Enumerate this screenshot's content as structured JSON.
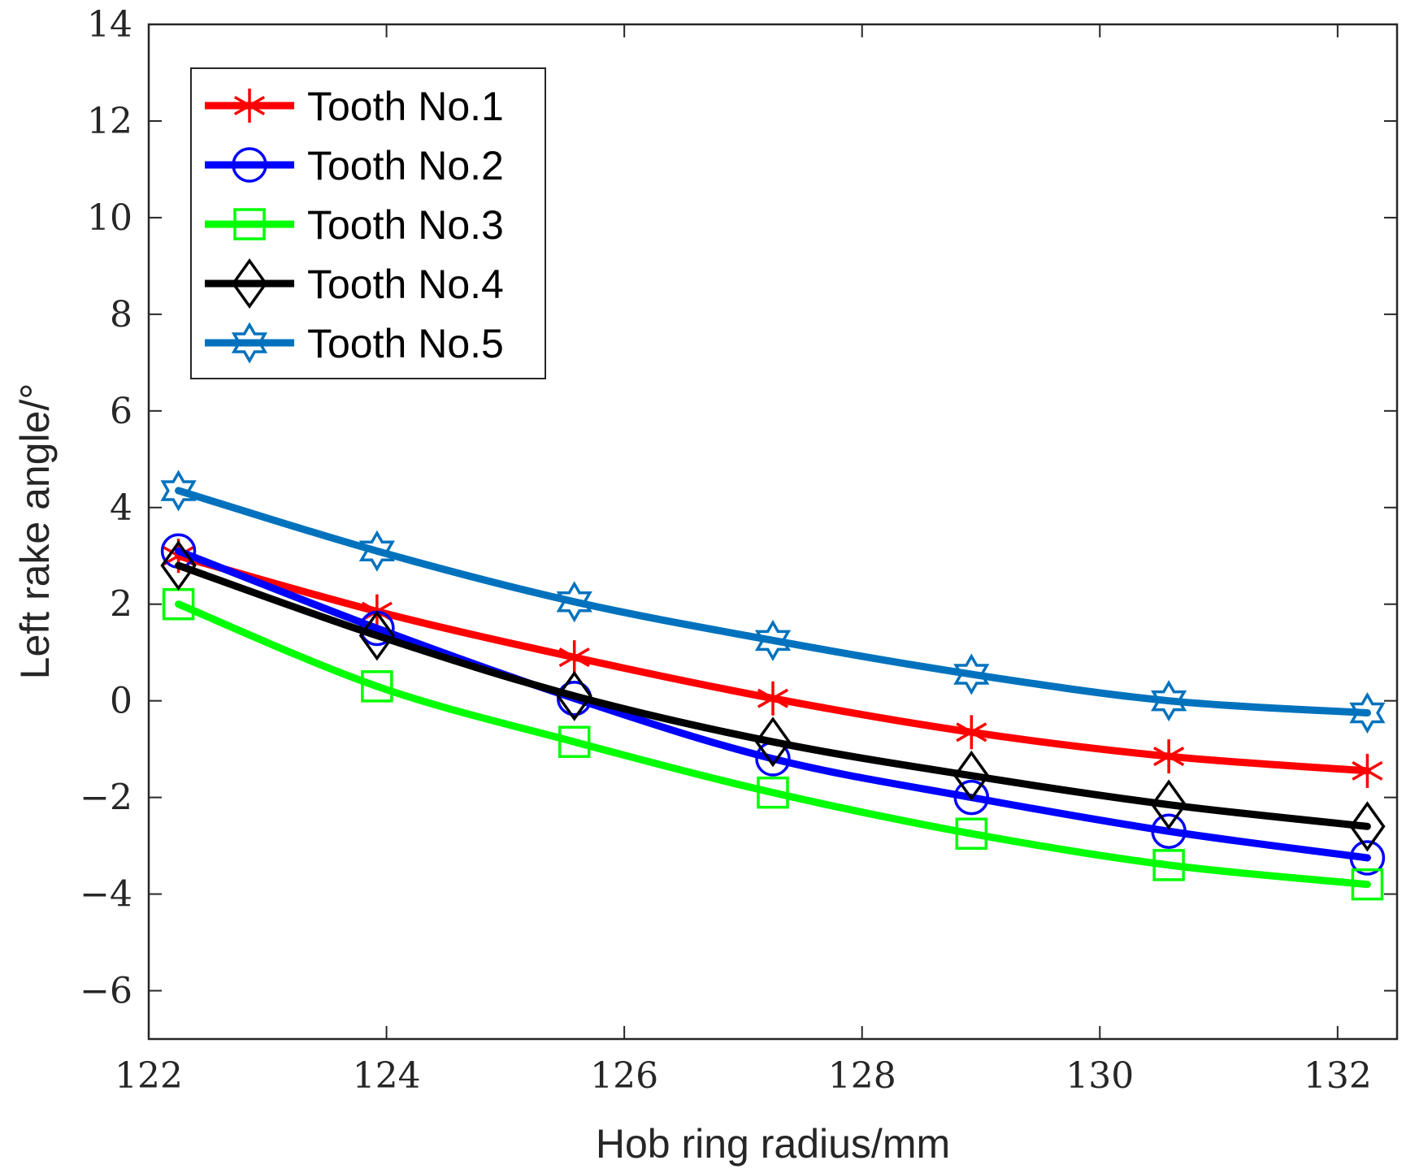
{
  "chart_data": {
    "type": "line",
    "title": "",
    "xlabel": "Hob ring radius/mm",
    "ylabel": "Left rake angle/°",
    "xlim": [
      122,
      132.5
    ],
    "ylim": [
      -7,
      14
    ],
    "xticks": [
      122,
      124,
      126,
      128,
      130,
      132
    ],
    "xtick_labels": [
      "122",
      "124",
      "126",
      "128",
      "130",
      "132"
    ],
    "yticks": [
      -6,
      -4,
      -2,
      0,
      2,
      4,
      6,
      8,
      10,
      12,
      14
    ],
    "ytick_labels": [
      "−6",
      "−4",
      "−2",
      "0",
      "2",
      "4",
      "6",
      "8",
      "10",
      "12",
      "14"
    ],
    "grid": false,
    "legend_position": "top-left",
    "x": [
      122.25,
      123.92,
      125.58,
      127.25,
      128.92,
      130.58,
      132.25
    ],
    "series": [
      {
        "name": "Tooth No.1",
        "color": "#ff0000",
        "marker": "asterisk",
        "values": [
          3.0,
          1.85,
          0.9,
          0.05,
          -0.65,
          -1.15,
          -1.45
        ]
      },
      {
        "name": "Tooth No.2",
        "color": "#0000ff",
        "marker": "circle",
        "values": [
          3.1,
          1.5,
          0.05,
          -1.2,
          -2.0,
          -2.7,
          -3.25
        ]
      },
      {
        "name": "Tooth No.3",
        "color": "#00ff00",
        "marker": "square",
        "values": [
          2.0,
          0.3,
          -0.85,
          -1.9,
          -2.75,
          -3.4,
          -3.8
        ]
      },
      {
        "name": "Tooth No.4",
        "color": "#000000",
        "marker": "diamond",
        "values": [
          2.8,
          1.35,
          0.1,
          -0.85,
          -1.55,
          -2.15,
          -2.6
        ]
      },
      {
        "name": "Tooth No.5",
        "color": "#0072bd",
        "marker": "hexagram",
        "values": [
          4.35,
          3.1,
          2.05,
          1.25,
          0.55,
          0.0,
          -0.25
        ]
      }
    ]
  }
}
